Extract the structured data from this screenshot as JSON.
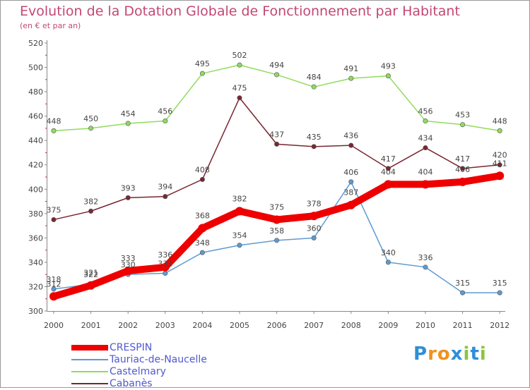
{
  "header": {
    "title": "Evolution de la Dotation Globale de Fonctionnement par Habitant",
    "subtitle": "(en € et par an)"
  },
  "colors": {
    "title": "#c34774",
    "legend_text": "#4f59d1",
    "grid": "#cccccc",
    "crespin": "#ee0000",
    "tauriac": "#5f9ad0",
    "castelmary": "#8fdc5b",
    "cabanes": "#7a2630"
  },
  "logo": {
    "text": "Proxiti",
    "letter_colors": [
      "#2e8fd8",
      "#f0921e",
      "#f0921e",
      "#2e8fd8",
      "#8bc53f",
      "#2e8fd8",
      "#8bc53f"
    ]
  },
  "chart_data": {
    "type": "line",
    "title": "Evolution de la Dotation Globale de Fonctionnement par Habitant",
    "subtitle": "(en € et par an)",
    "x": [
      "2000",
      "2001",
      "2002",
      "2003",
      "2004",
      "2005",
      "2006",
      "2007",
      "2008",
      "2009",
      "2010",
      "2011",
      "2012"
    ],
    "ylim": [
      300,
      520
    ],
    "yticks": [
      300,
      320,
      340,
      360,
      380,
      400,
      420,
      440,
      460,
      480,
      500,
      520
    ],
    "grid": false,
    "legend": "bottom-left",
    "series": [
      {
        "name": "CRESPIN",
        "color": "#ee0000",
        "values": [
          312,
          321,
          333,
          336,
          368,
          382,
          375,
          378,
          387,
          404,
          404,
          406,
          411
        ]
      },
      {
        "name": "Tauriac-de-Naucelle",
        "color": "#5f9ad0",
        "values": [
          318,
          322,
          330,
          331,
          348,
          354,
          358,
          360,
          406,
          340,
          336,
          315,
          315
        ]
      },
      {
        "name": "Castelmary",
        "color": "#8fdc5b",
        "values": [
          448,
          450,
          454,
          456,
          495,
          502,
          494,
          484,
          491,
          493,
          456,
          453,
          448
        ]
      },
      {
        "name": "Cabanès",
        "color": "#7a2630",
        "values": [
          375,
          382,
          393,
          394,
          408,
          475,
          437,
          435,
          436,
          417,
          434,
          417,
          420
        ]
      }
    ]
  }
}
